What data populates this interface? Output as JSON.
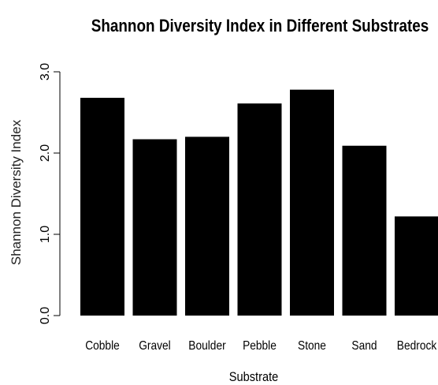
{
  "chart_data": {
    "type": "bar",
    "title": "Shannon Diversity Index in Different Substrates",
    "xlabel": "Substrate",
    "ylabel": "Shannon Diversity Index",
    "categories": [
      "Cobble",
      "Gravel",
      "Boulder",
      "Pebble",
      "Stone",
      "Sand",
      "Bedrock"
    ],
    "values": [
      2.68,
      2.17,
      2.2,
      2.61,
      2.78,
      2.09,
      1.22
    ],
    "ylim": [
      0,
      3
    ],
    "yticks": [
      "0.0",
      "1.0",
      "2.0",
      "3.0"
    ],
    "bar_color": "#000000",
    "grid": false,
    "legend": "none"
  }
}
